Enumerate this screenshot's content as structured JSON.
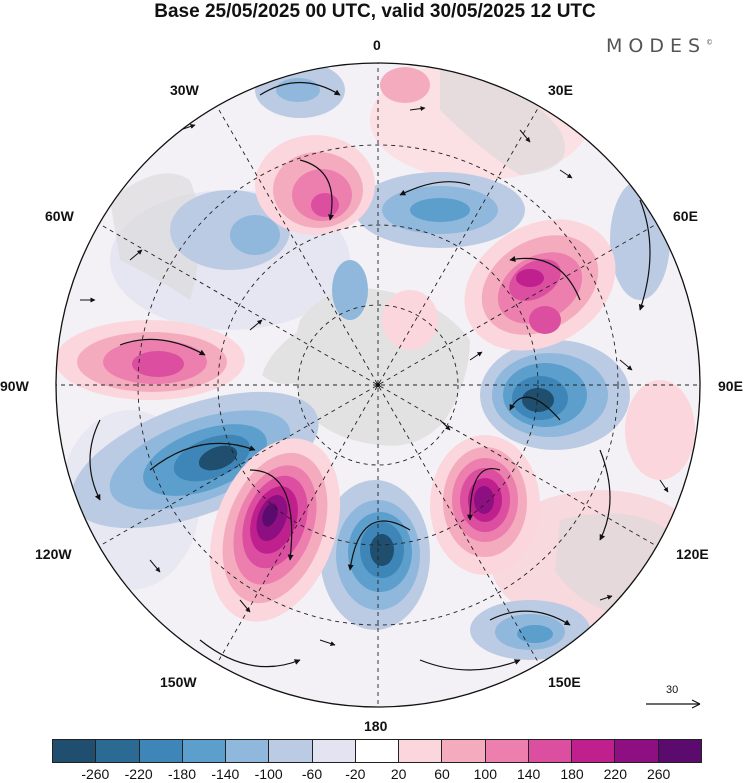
{
  "title": "Base 25/05/2025 00 UTC, valid 30/05/2025 12 UTC",
  "brand": "MODES",
  "brand_mark": "©",
  "longitude_labels": {
    "lon_0": "0",
    "lon_30e": "30E",
    "lon_60e": "60E",
    "lon_90e": "90E",
    "lon_120e": "120E",
    "lon_150e": "150E",
    "lon_180": "180",
    "lon_150w": "150W",
    "lon_120w": "120W",
    "lon_90w": "90W",
    "lon_60w": "60W",
    "lon_30w": "30W"
  },
  "reference_vector": {
    "value": "30"
  },
  "colorbar": {
    "colors": [
      "#1f4e6e",
      "#2b6a93",
      "#3f86b8",
      "#5c9fcc",
      "#8fb8dc",
      "#bccbe4",
      "#e3e3f1",
      "#ffffff",
      "#fbd6dc",
      "#f5abbe",
      "#ec7fae",
      "#dc4ea0",
      "#bf208e",
      "#8d0f82",
      "#5b0b6e"
    ],
    "tick_labels": [
      "-260",
      "-220",
      "-180",
      "-140",
      "-100",
      "-60",
      "-20",
      "20",
      "60",
      "100",
      "140",
      "180",
      "220",
      "260"
    ]
  }
}
